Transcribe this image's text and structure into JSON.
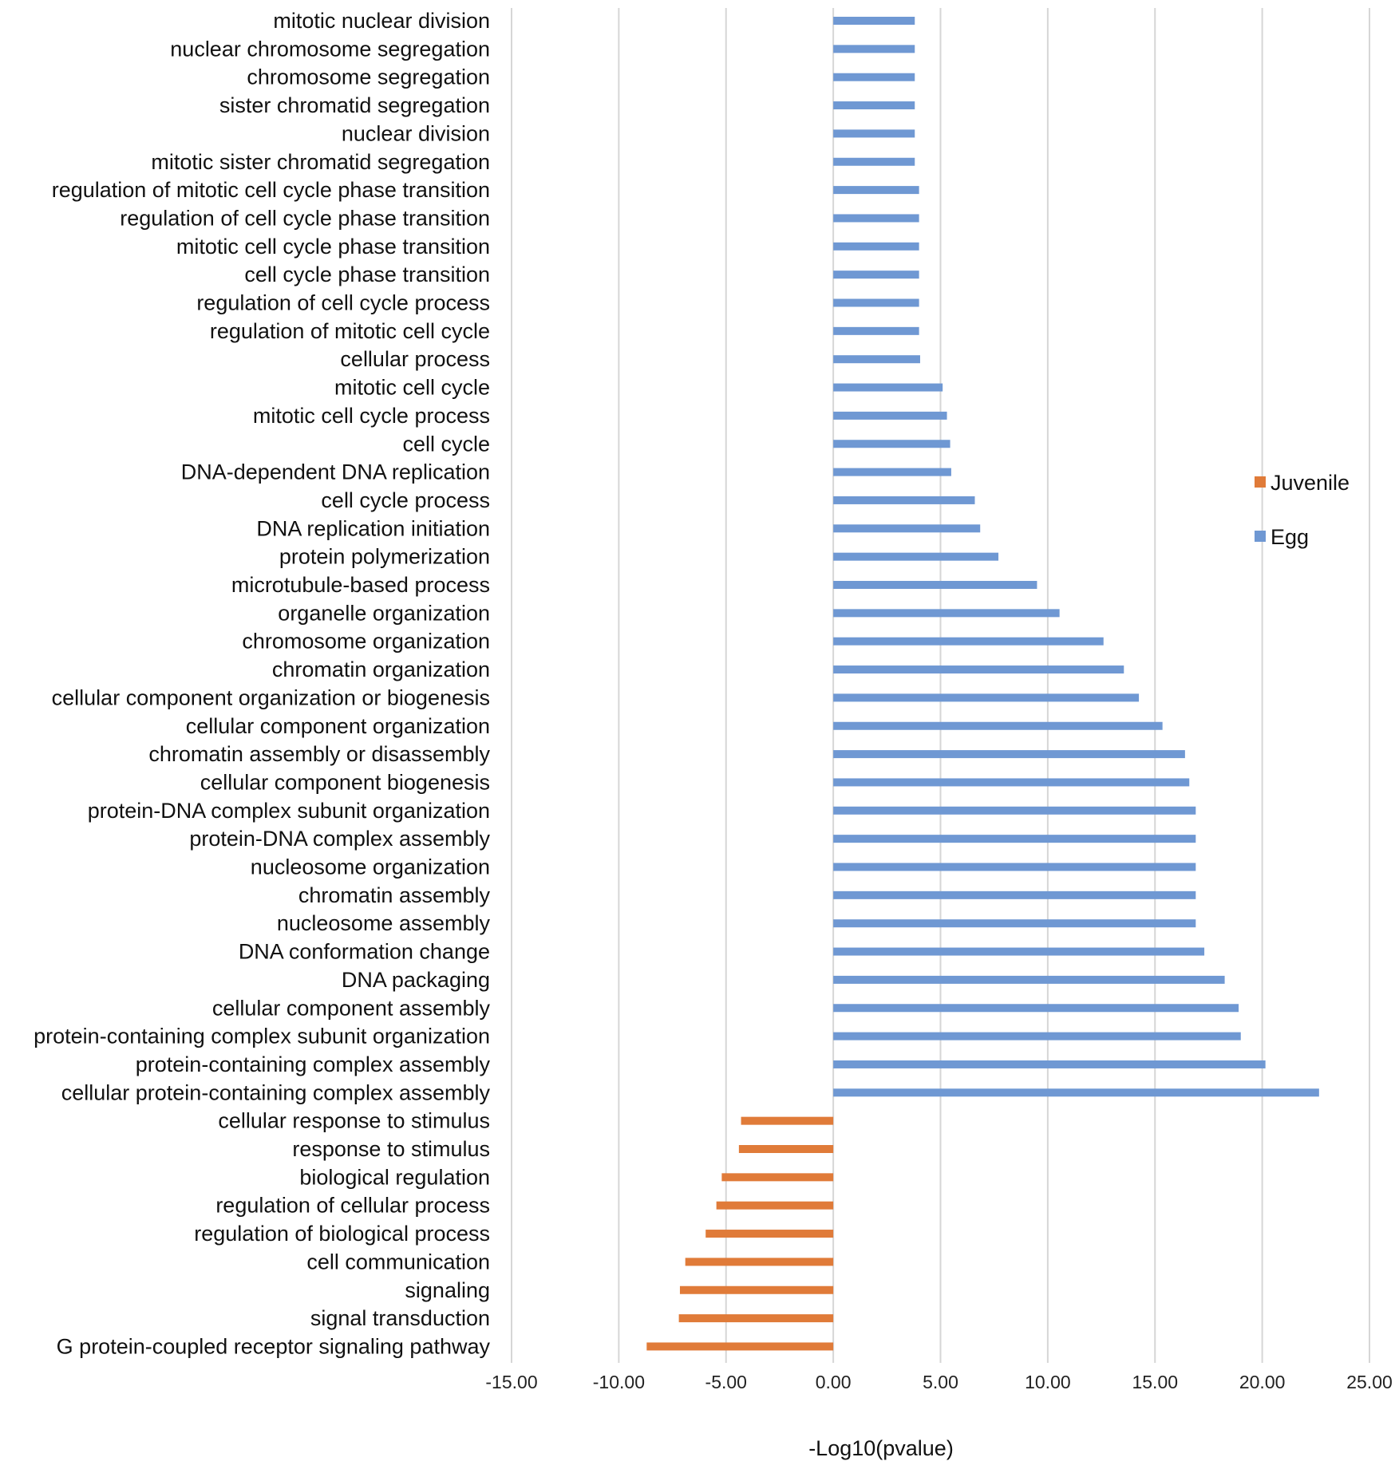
{
  "chart_data": {
    "type": "bar",
    "orientation": "horizontal",
    "xlabel": "-Log10(pvalue)",
    "xlim": [
      -15,
      25
    ],
    "xticks": [
      -15,
      -10,
      -5,
      0,
      5,
      10,
      15,
      20,
      25
    ],
    "xtick_labels": [
      "-15.00",
      "-10.00",
      "-5.00",
      "0.00",
      "5.00",
      "10.00",
      "15.00",
      "20.00",
      "25.00"
    ],
    "grid": true,
    "legend_position": "right",
    "series": [
      {
        "name": "Juvenile",
        "color": "#e07b39"
      },
      {
        "name": "Egg",
        "color": "#6f98d3"
      }
    ],
    "bars": [
      {
        "category": "mitotic nuclear division",
        "value": 3.8,
        "series": "Egg"
      },
      {
        "category": "nuclear chromosome segregation",
        "value": 3.8,
        "series": "Egg"
      },
      {
        "category": "chromosome segregation",
        "value": 3.8,
        "series": "Egg"
      },
      {
        "category": "sister chromatid segregation",
        "value": 3.8,
        "series": "Egg"
      },
      {
        "category": "nuclear division",
        "value": 3.8,
        "series": "Egg"
      },
      {
        "category": "mitotic sister chromatid segregation",
        "value": 3.8,
        "series": "Egg"
      },
      {
        "category": "regulation of mitotic cell cycle phase transition",
        "value": 4.0,
        "series": "Egg"
      },
      {
        "category": "regulation of cell cycle phase transition",
        "value": 4.0,
        "series": "Egg"
      },
      {
        "category": "mitotic cell cycle phase transition",
        "value": 4.0,
        "series": "Egg"
      },
      {
        "category": "cell cycle phase transition",
        "value": 4.0,
        "series": "Egg"
      },
      {
        "category": "regulation of cell cycle process",
        "value": 4.0,
        "series": "Egg"
      },
      {
        "category": "regulation of mitotic cell cycle",
        "value": 4.0,
        "series": "Egg"
      },
      {
        "category": "cellular process",
        "value": 4.05,
        "series": "Egg"
      },
      {
        "category": "mitotic cell cycle",
        "value": 5.1,
        "series": "Egg"
      },
      {
        "category": "mitotic cell cycle process",
        "value": 5.3,
        "series": "Egg"
      },
      {
        "category": "cell cycle",
        "value": 5.45,
        "series": "Egg"
      },
      {
        "category": "DNA-dependent DNA replication",
        "value": 5.5,
        "series": "Egg"
      },
      {
        "category": "cell cycle process",
        "value": 6.6,
        "series": "Egg"
      },
      {
        "category": "DNA replication initiation",
        "value": 6.85,
        "series": "Egg"
      },
      {
        "category": "protein polymerization",
        "value": 7.7,
        "series": "Egg"
      },
      {
        "category": "microtubule-based process",
        "value": 9.5,
        "series": "Egg"
      },
      {
        "category": "organelle organization",
        "value": 10.55,
        "series": "Egg"
      },
      {
        "category": "chromosome organization",
        "value": 12.6,
        "series": "Egg"
      },
      {
        "category": "chromatin organization",
        "value": 13.55,
        "series": "Egg"
      },
      {
        "category": "cellular component organization or biogenesis",
        "value": 14.25,
        "series": "Egg"
      },
      {
        "category": "cellular component organization",
        "value": 15.35,
        "series": "Egg"
      },
      {
        "category": "chromatin assembly or disassembly",
        "value": 16.4,
        "series": "Egg"
      },
      {
        "category": "cellular component biogenesis",
        "value": 16.6,
        "series": "Egg"
      },
      {
        "category": "protein-DNA complex subunit organization",
        "value": 16.9,
        "series": "Egg"
      },
      {
        "category": "protein-DNA complex assembly",
        "value": 16.9,
        "series": "Egg"
      },
      {
        "category": "nucleosome organization",
        "value": 16.9,
        "series": "Egg"
      },
      {
        "category": "chromatin assembly",
        "value": 16.9,
        "series": "Egg"
      },
      {
        "category": "nucleosome assembly",
        "value": 16.9,
        "series": "Egg"
      },
      {
        "category": "DNA conformation change",
        "value": 17.3,
        "series": "Egg"
      },
      {
        "category": "DNA packaging",
        "value": 18.25,
        "series": "Egg"
      },
      {
        "category": "cellular component assembly",
        "value": 18.9,
        "series": "Egg"
      },
      {
        "category": "protein-containing complex subunit organization",
        "value": 19.0,
        "series": "Egg"
      },
      {
        "category": "protein-containing complex assembly",
        "value": 20.15,
        "series": "Egg"
      },
      {
        "category": "cellular protein-containing complex assembly",
        "value": 22.65,
        "series": "Egg"
      },
      {
        "category": "cellular response to stimulus",
        "value": -4.3,
        "series": "Juvenile"
      },
      {
        "category": "response to stimulus",
        "value": -4.4,
        "series": "Juvenile"
      },
      {
        "category": "biological regulation",
        "value": -5.2,
        "series": "Juvenile"
      },
      {
        "category": "regulation of cellular process",
        "value": -5.45,
        "series": "Juvenile"
      },
      {
        "category": "regulation of biological process",
        "value": -5.95,
        "series": "Juvenile"
      },
      {
        "category": "cell communication",
        "value": -6.9,
        "series": "Juvenile"
      },
      {
        "category": "signaling",
        "value": -7.15,
        "series": "Juvenile"
      },
      {
        "category": "signal transduction",
        "value": -7.2,
        "series": "Juvenile"
      },
      {
        "category": "G protein-coupled receptor signaling pathway",
        "value": -8.7,
        "series": "Juvenile"
      }
    ]
  }
}
